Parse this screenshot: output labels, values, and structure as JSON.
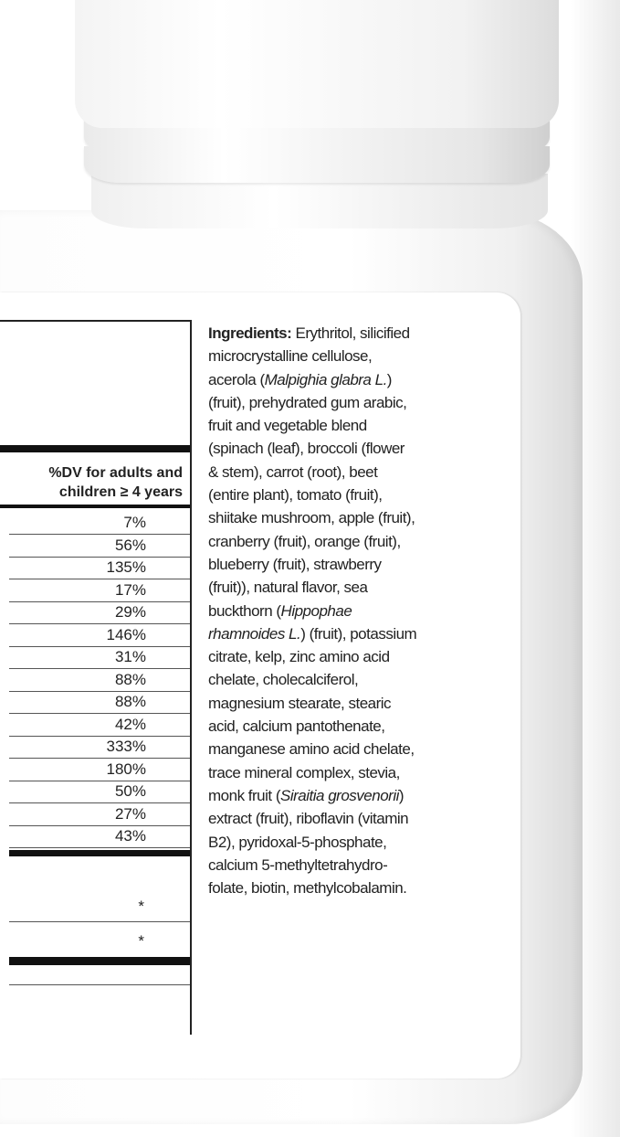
{
  "table": {
    "header": "%DV for adults and children ≥ 4 years",
    "header_line1": "%DV for adults and",
    "header_line2": "children ≥ 4 years",
    "values": [
      "7%",
      "56%",
      "135%",
      "17%",
      "29%",
      "146%",
      "31%",
      "88%",
      "88%",
      "42%",
      "333%",
      "180%",
      "50%",
      "27%",
      "43%"
    ],
    "stars": [
      "*",
      "*"
    ]
  },
  "ingredients": {
    "lines": [
      [
        [
          "Ingredients:",
          "b"
        ],
        [
          " Erythritol, silicified",
          ""
        ]
      ],
      [
        [
          "microcrystalline cellulose,",
          ""
        ]
      ],
      [
        [
          "acerola (",
          ""
        ],
        [
          "Malpighia glabra L.",
          "i"
        ],
        [
          ")",
          ""
        ]
      ],
      [
        [
          "(fruit), prehydrated gum arabic,",
          ""
        ]
      ],
      [
        [
          "fruit and vegetable blend",
          ""
        ]
      ],
      [
        [
          "(spinach (leaf), broccoli (flower",
          ""
        ]
      ],
      [
        [
          "& stem), carrot (root), beet",
          ""
        ]
      ],
      [
        [
          "(entire plant), tomato (fruit),",
          ""
        ]
      ],
      [
        [
          "shiitake mushroom, apple (fruit),",
          ""
        ]
      ],
      [
        [
          "cranberry (fruit), orange (fruit),",
          ""
        ]
      ],
      [
        [
          "blueberry (fruit), strawberry",
          ""
        ]
      ],
      [
        [
          "(fruit)), natural flavor, sea",
          ""
        ]
      ],
      [
        [
          "buckthorn (",
          ""
        ],
        [
          "Hippophae",
          "i"
        ]
      ],
      [
        [
          "rhamnoides L.",
          "i"
        ],
        [
          ") (fruit), potassium",
          ""
        ]
      ],
      [
        [
          "citrate, kelp, zinc amino acid",
          ""
        ]
      ],
      [
        [
          "chelate, cholecalciferol,",
          ""
        ]
      ],
      [
        [
          "magnesium stearate, stearic",
          ""
        ]
      ],
      [
        [
          "acid, calcium pantothenate,",
          ""
        ]
      ],
      [
        [
          "manganese amino acid chelate,",
          ""
        ]
      ],
      [
        [
          "trace mineral complex, stevia,",
          ""
        ]
      ],
      [
        [
          "monk fruit (",
          ""
        ],
        [
          "Siraitia grosvenorii",
          "i"
        ],
        [
          ")",
          ""
        ]
      ],
      [
        [
          "extract (fruit), riboflavin (vitamin",
          ""
        ]
      ],
      [
        [
          "B2), pyridoxal-5-phosphate,",
          ""
        ]
      ],
      [
        [
          "calcium 5-methyltetrahydro-",
          ""
        ]
      ],
      [
        [
          "folate, biotin, methylcobalamin.",
          ""
        ]
      ]
    ]
  }
}
